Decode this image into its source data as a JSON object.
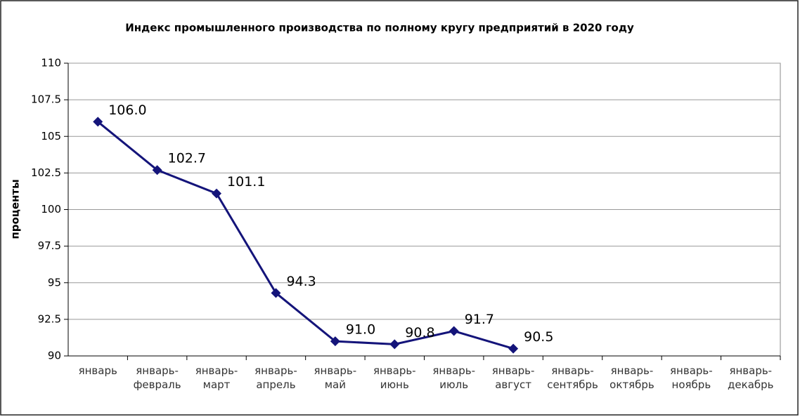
{
  "chart_data": {
    "type": "line",
    "title": "Индекс промышленного производства по полному кругу предприятий в 2020 году",
    "y_label": "проценты",
    "categories": [
      "январь",
      "январь-февраль",
      "январь-март",
      "январь-апрель",
      "январь-май",
      "январь-июнь",
      "январь-июль",
      "январь-август",
      "январь-сентябрь",
      "январь-октябрь",
      "январь-ноябрь",
      "январь-декабрь"
    ],
    "series": [
      {
        "name": "Индекс",
        "color": "#14147a",
        "values": [
          106.0,
          102.7,
          101.1,
          94.3,
          91.0,
          90.8,
          91.7,
          90.5,
          null,
          null,
          null,
          null
        ],
        "value_labels": [
          "106.0",
          "102.7",
          "101.1",
          "94.3",
          "91.0",
          "90.8",
          "91.7",
          "90.5",
          null,
          null,
          null,
          null
        ]
      }
    ],
    "ylim": [
      90,
      110
    ],
    "yticks": [
      90,
      92.5,
      95,
      97.5,
      100,
      102.5,
      105,
      107.5,
      110
    ],
    "grid": true
  }
}
